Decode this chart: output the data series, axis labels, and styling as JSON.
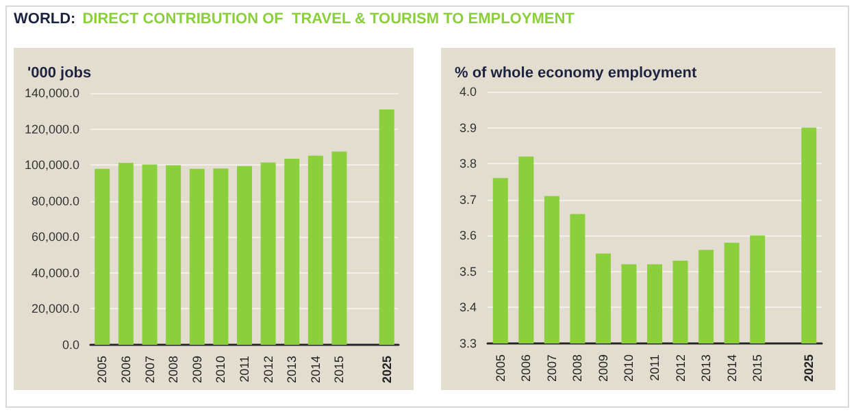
{
  "chart_data": [
    {
      "type": "bar",
      "title": "WORLD:",
      "subtitle": "DIRECT CONTRIBUTION OF  TRAVEL & TOURISM TO EMPLOYMENT",
      "ylabel": "'000 jobs",
      "categories": [
        "2005",
        "2006",
        "2007",
        "2008",
        "2009",
        "2010",
        "2011",
        "2012",
        "2013",
        "2014",
        "2015",
        null,
        "2025"
      ],
      "values": [
        97900,
        101200,
        100200,
        99900,
        97900,
        98100,
        99400,
        101400,
        103500,
        105200,
        107500,
        null,
        130900
      ],
      "color": "#8ccf3c",
      "ylim": [
        0,
        140000
      ],
      "yticks": [
        {
          "value": 0,
          "label": "0.0"
        },
        {
          "value": 20000,
          "label": "20,000.0"
        },
        {
          "value": 40000,
          "label": "40,000.0"
        },
        {
          "value": 60000,
          "label": "60,000.0"
        },
        {
          "value": 80000,
          "label": "80,000.0"
        },
        {
          "value": 100000,
          "label": "100,000.0"
        },
        {
          "value": 120000,
          "label": "120,000.0"
        },
        {
          "value": 140000,
          "label": "140,000.0"
        }
      ],
      "grid": "y"
    },
    {
      "type": "bar",
      "ylabel": "% of whole economy employment",
      "categories": [
        "2005",
        "2006",
        "2007",
        "2008",
        "2009",
        "2010",
        "2011",
        "2012",
        "2013",
        "2014",
        "2015",
        null,
        "2025"
      ],
      "values": [
        3.76,
        3.82,
        3.71,
        3.66,
        3.55,
        3.52,
        3.52,
        3.53,
        3.56,
        3.58,
        3.6,
        null,
        3.9
      ],
      "color": "#8ccf3c",
      "ylim": [
        3.3,
        4.0
      ],
      "yticks": [
        {
          "value": 3.3,
          "label": "3.3"
        },
        {
          "value": 3.4,
          "label": "3.4"
        },
        {
          "value": 3.5,
          "label": "3.5"
        },
        {
          "value": 3.6,
          "label": "3.6"
        },
        {
          "value": 3.7,
          "label": "3.7"
        },
        {
          "value": 3.8,
          "label": "3.8"
        },
        {
          "value": 3.9,
          "label": "3.9"
        },
        {
          "value": 4.0,
          "label": "4.0"
        }
      ],
      "grid": "y"
    }
  ]
}
